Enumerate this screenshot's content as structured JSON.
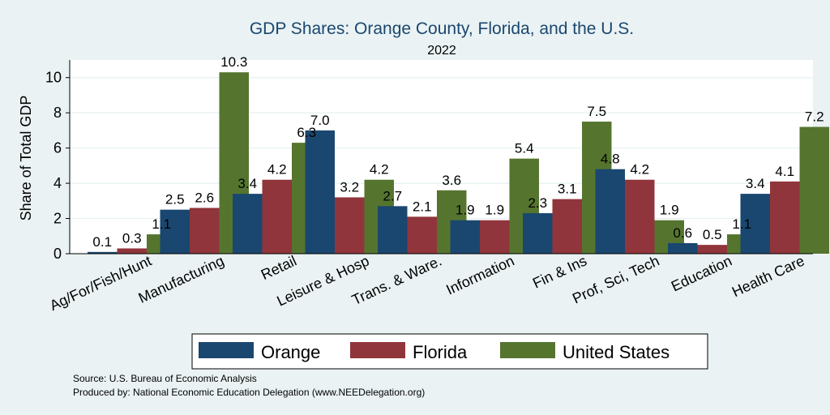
{
  "chart_data": {
    "type": "bar",
    "title": "GDP Shares: Orange County, Florida, and the U.S.",
    "subtitle": "2022",
    "xlabel": "",
    "ylabel": "Share of Total GDP",
    "ylim": [
      0,
      11
    ],
    "yticks": [
      0,
      2,
      4,
      6,
      8,
      10
    ],
    "grid": true,
    "legend_position": "bottom",
    "categories": [
      "Ag/For/Fish/Hunt",
      "Manufacturing",
      "Retail",
      "Leisure & Hosp",
      "Trans. & Ware.",
      "Information",
      "Fin & Ins",
      "Prof, Sci, Tech",
      "Education",
      "Health Care"
    ],
    "series": [
      {
        "name": "Orange",
        "color": "#1a476f",
        "values": [
          0.1,
          2.5,
          3.4,
          7.0,
          2.7,
          1.9,
          2.3,
          4.8,
          0.6,
          3.4
        ]
      },
      {
        "name": "Florida",
        "color": "#90353b",
        "values": [
          0.3,
          2.6,
          4.2,
          3.2,
          2.1,
          1.9,
          3.1,
          4.2,
          0.5,
          4.1
        ]
      },
      {
        "name": "United States",
        "color": "#55752f",
        "values": [
          1.1,
          10.3,
          6.3,
          4.2,
          3.6,
          5.4,
          7.5,
          1.9,
          1.1,
          7.2
        ]
      }
    ],
    "notes": [
      "Source: U.S. Bureau of Economic Analysis",
      "Produced by: National Economic Education Delegation (www.NEEDelegation.org)"
    ]
  }
}
